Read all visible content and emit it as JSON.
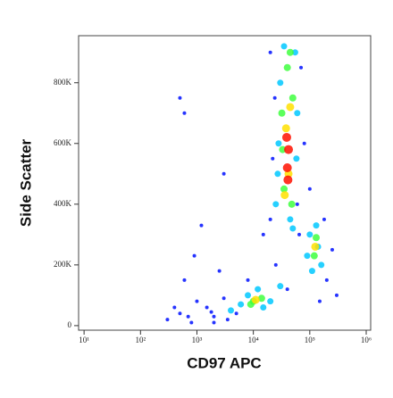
{
  "chart_data": {
    "type": "scatter",
    "xlabel": "CD97 APC",
    "ylabel": "Side Scatter",
    "xscale": "log",
    "xlim": [
      8,
      1200000
    ],
    "ylim": [
      -15000,
      955000
    ],
    "xticks": [
      {
        "value": 10,
        "label": "10¹"
      },
      {
        "value": 100,
        "label": "10²"
      },
      {
        "value": 1000,
        "label": "10³"
      },
      {
        "value": 10000,
        "label": "10⁴"
      },
      {
        "value": 100000,
        "label": "10⁵"
      },
      {
        "value": 1000000,
        "label": "10⁶"
      }
    ],
    "yticks": [
      0,
      {
        "value": 200000,
        "label": "200K"
      },
      {
        "value": 400000,
        "label": "400K"
      },
      {
        "value": 600000,
        "label": "600K"
      },
      {
        "value": 800000,
        "label": "800K"
      }
    ],
    "series": [
      {
        "color": "#0010ff",
        "x": [
          300,
          500,
          800,
          1500,
          2000,
          3000,
          600,
          900,
          2500,
          1200,
          500,
          600,
          3000,
          20000,
          15000,
          8000,
          25000,
          70000,
          80000,
          60000,
          200000,
          180000,
          250000,
          150000,
          40000,
          20000,
          400,
          1000,
          2000,
          5000,
          300000,
          100000,
          700,
          1800,
          3500,
          22000,
          65000,
          24000
        ],
        "values": [
          20000,
          40000,
          10000,
          60000,
          30000,
          90000,
          150000,
          230000,
          180000,
          330000,
          750000,
          700000,
          500000,
          900000,
          300000,
          150000,
          200000,
          850000,
          600000,
          400000,
          150000,
          350000,
          250000,
          80000,
          120000,
          350000,
          60000,
          80000,
          10000,
          40000,
          100000,
          450000,
          30000,
          45000,
          20000,
          550000,
          300000,
          750000
        ]
      },
      {
        "color": "#00c8ff",
        "x": [
          25000,
          30000,
          55000,
          45000,
          28000,
          60000,
          35000,
          50000,
          110000,
          140000,
          100000,
          130000,
          6000,
          15000,
          8000,
          12000,
          4000,
          20000,
          30000,
          160000,
          90000,
          27000,
          58000
        ],
        "values": [
          400000,
          800000,
          900000,
          350000,
          600000,
          700000,
          920000,
          320000,
          180000,
          260000,
          300000,
          330000,
          70000,
          60000,
          100000,
          120000,
          50000,
          80000,
          130000,
          200000,
          230000,
          500000,
          550000
        ]
      },
      {
        "color": "#40ff40",
        "x": [
          35000,
          50000,
          32000,
          48000,
          40000,
          120000,
          130000,
          10000,
          14000,
          9000,
          45000,
          33000
        ],
        "values": [
          450000,
          750000,
          700000,
          400000,
          850000,
          230000,
          290000,
          80000,
          90000,
          70000,
          900000,
          580000
        ]
      },
      {
        "color": "#ffe000",
        "x": [
          42000,
          38000,
          45000,
          36000,
          125000,
          11000
        ],
        "values": [
          500000,
          650000,
          720000,
          430000,
          260000,
          85000
        ]
      },
      {
        "color": "#ff1000",
        "x": [
          40000,
          42000,
          39000,
          41000
        ],
        "values": [
          520000,
          580000,
          620000,
          480000
        ]
      }
    ]
  }
}
